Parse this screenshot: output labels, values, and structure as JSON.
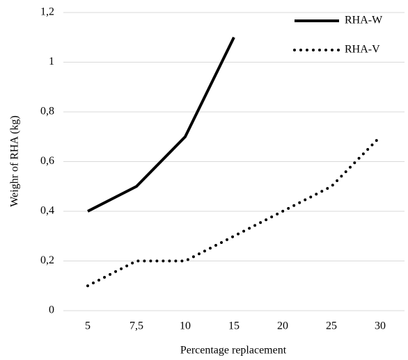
{
  "chart_data": {
    "type": "line",
    "x_label": "Percentage replacement",
    "y_label": "Weighr of RHA (kg)",
    "categories": [
      "5",
      "7,5",
      "10",
      "15",
      "20",
      "25",
      "30"
    ],
    "series": [
      {
        "name": "RHA-W",
        "color": "#000000",
        "style": "solid",
        "values": [
          0.4,
          0.5,
          0.7,
          1.1,
          null,
          null,
          null
        ]
      },
      {
        "name": "RHA-V",
        "color": "#000000",
        "style": "dotted",
        "values": [
          0.1,
          0.2,
          0.2,
          0.3,
          0.4,
          0.5,
          0.7
        ]
      }
    ],
    "ylim": [
      0,
      1.2
    ],
    "yticks": [
      0,
      {
        "value": 0.2,
        "label": "0,2"
      },
      {
        "value": 0.4,
        "label": "0,4"
      },
      {
        "value": 0.6,
        "label": "0,6"
      },
      {
        "value": 0.8,
        "label": "0,8"
      },
      1,
      {
        "value": 1.2,
        "label": "1,2"
      }
    ],
    "grid": true,
    "legend": "top-right"
  }
}
